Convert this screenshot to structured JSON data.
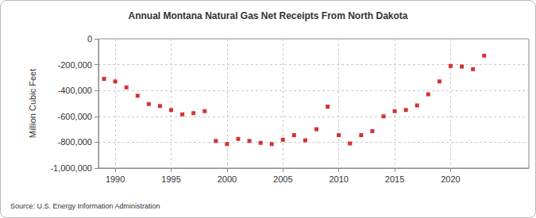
{
  "chart_data": {
    "type": "scatter",
    "title": "Annual Montana Natural Gas Net Receipts From North Dakota",
    "y_label": "Million Cubic Feet",
    "source": "Source: U.S. Energy Information Administration",
    "x": [
      1989,
      1990,
      1991,
      1992,
      1993,
      1994,
      1995,
      1996,
      1997,
      1998,
      1999,
      2000,
      2001,
      2002,
      2003,
      2004,
      2005,
      2006,
      2007,
      2008,
      2009,
      2010,
      2011,
      2012,
      2013,
      2014,
      2015,
      2016,
      2017,
      2018,
      2019,
      2020,
      2021,
      2022,
      2023
    ],
    "values": [
      -310000,
      -330000,
      -375000,
      -440000,
      -505000,
      -520000,
      -550000,
      -585000,
      -575000,
      -560000,
      -790000,
      -815000,
      -775000,
      -790000,
      -805000,
      -815000,
      -780000,
      -745000,
      -785000,
      -700000,
      -525000,
      -745000,
      -810000,
      -745000,
      -715000,
      -600000,
      -560000,
      -550000,
      -515000,
      -430000,
      -330000,
      -210000,
      -215000,
      -235000,
      -130000
    ],
    "color": "#cc0000",
    "marker": "square",
    "xlim": [
      1988.5,
      2027
    ],
    "xticks": [
      1990,
      1995,
      2000,
      2005,
      2010,
      2015,
      2020
    ],
    "ylim": [
      -1000000,
      0
    ],
    "yticks": [
      {
        "value": -1000000,
        "label": "-1,000,000"
      },
      {
        "value": -800000,
        "label": "-800,000"
      },
      {
        "value": -600000,
        "label": "-600,000"
      },
      {
        "value": -400000,
        "label": "-400,000"
      },
      {
        "value": -200000,
        "label": "-200,000"
      },
      0
    ],
    "grid": true
  }
}
